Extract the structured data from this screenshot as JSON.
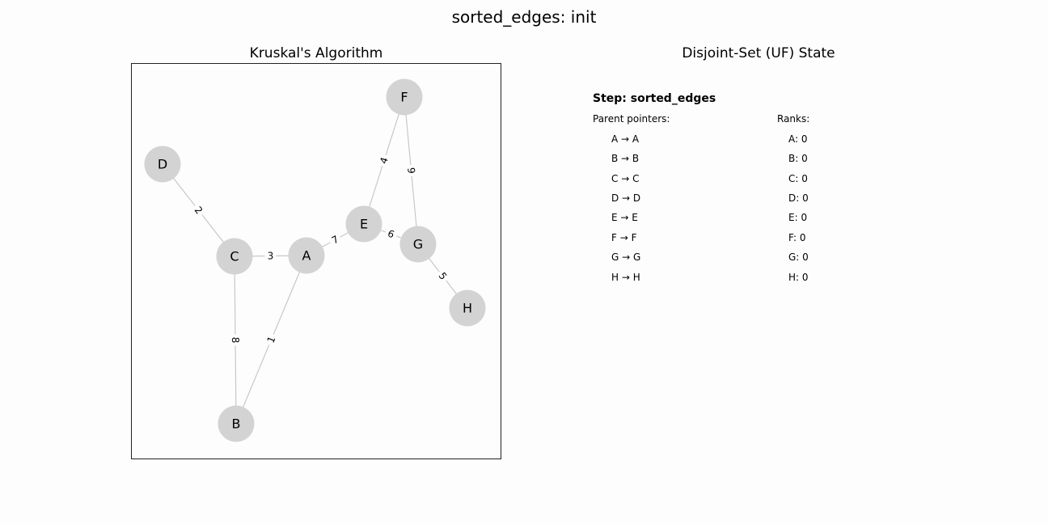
{
  "figure": {
    "title": "sorted_edges: init",
    "background": "#fdfdfd"
  },
  "graph_panel": {
    "title": "Kruskal's Algorithm",
    "node_color": "#d3d3d3",
    "edge_color": "#c8c8c8",
    "nodes": [
      "A",
      "B",
      "C",
      "D",
      "E",
      "F",
      "G",
      "H"
    ],
    "edges": [
      {
        "from": "A",
        "to": "B",
        "weight": "1"
      },
      {
        "from": "C",
        "to": "D",
        "weight": "2"
      },
      {
        "from": "A",
        "to": "C",
        "weight": "3"
      },
      {
        "from": "E",
        "to": "F",
        "weight": "4"
      },
      {
        "from": "G",
        "to": "H",
        "weight": "5"
      },
      {
        "from": "E",
        "to": "G",
        "weight": "6"
      },
      {
        "from": "A",
        "to": "E",
        "weight": "7"
      },
      {
        "from": "B",
        "to": "C",
        "weight": "8"
      },
      {
        "from": "F",
        "to": "G",
        "weight": "9"
      }
    ]
  },
  "uf_panel": {
    "title": "Disjoint-Set (UF) State",
    "step_label": "Step: sorted_edges",
    "parent_header": "Parent pointers:",
    "rank_header": "Ranks:",
    "parents": [
      "A → A",
      "B → B",
      "C → C",
      "D → D",
      "E → E",
      "F → F",
      "G → G",
      "H → H"
    ],
    "ranks": [
      "A: 0",
      "B: 0",
      "C: 0",
      "D: 0",
      "E: 0",
      "F: 0",
      "G: 0",
      "H: 0"
    ]
  }
}
